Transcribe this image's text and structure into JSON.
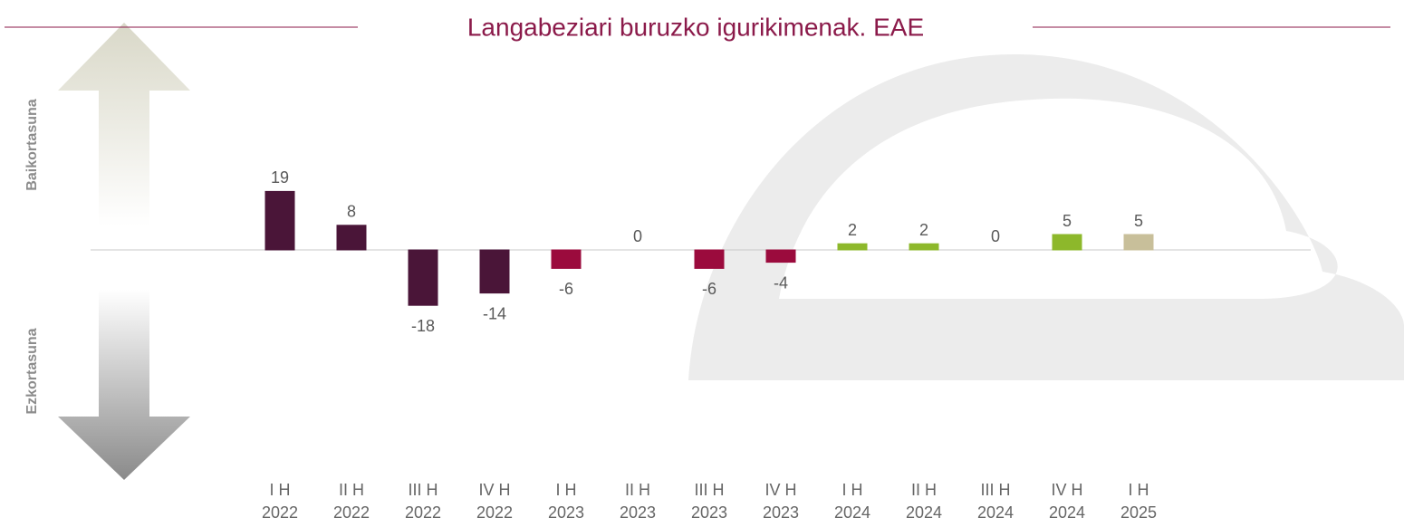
{
  "chart_data": {
    "type": "bar",
    "title": "Langabeziari buruzko igurikimenak. EAE",
    "positive_label": "Baikortasuna",
    "negative_label": "Ezkortasuna",
    "categories": [
      "I H\n2022",
      "II H\n2022",
      "III H\n2022",
      "IV H\n2022",
      "I H\n2023",
      "II H\n2023",
      "III H\n2023",
      "IV H\n2023",
      "I H\n2024",
      "II H\n2024",
      "III H\n2024",
      "IV H\n2024",
      "I H\n2025"
    ],
    "values": [
      19,
      8,
      -18,
      -14,
      -6,
      0,
      -6,
      -4,
      2,
      2,
      0,
      5,
      5
    ],
    "colors": [
      "#4a1538",
      "#4a1538",
      "#4a1538",
      "#4a1538",
      "#9b0b3d",
      "#9b0b3d",
      "#9b0b3d",
      "#9b0b3d",
      "#8db82b",
      "#8db82b",
      "#8db82b",
      "#8db82b",
      "#c8bf9a"
    ]
  }
}
